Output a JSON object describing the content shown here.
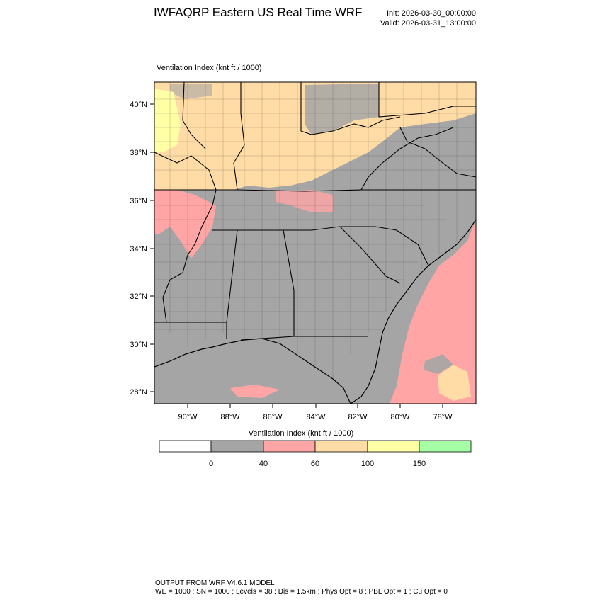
{
  "header": {
    "title": "IWFAQRP Eastern US Real Time WRF",
    "init": "Init: 2026-03-30_00:00:00",
    "valid": "Valid: 2026-03-31_13:00:00"
  },
  "map": {
    "field_label": "Ventilation Index   (knt ft / 1000)",
    "lat_labels": [
      "40°N",
      "38°N",
      "36°N",
      "34°N",
      "32°N",
      "30°N",
      "28°N"
    ],
    "lon_labels": [
      "90°W",
      "88°W",
      "86°W",
      "84°W",
      "82°W",
      "80°W",
      "78°W"
    ]
  },
  "colorbar": {
    "title": "Ventilation Index  (knt ft / 1000)",
    "bins": [
      {
        "color": "#ffffff"
      },
      {
        "color": "#a5a5a5"
      },
      {
        "color": "#ffa5a5"
      },
      {
        "color": "#ffdca5"
      },
      {
        "color": "#ffffa5"
      },
      {
        "color": "#a5ffa5"
      }
    ],
    "labels": [
      "0",
      "40",
      "60",
      "100",
      "150"
    ]
  },
  "footer": {
    "line1": "OUTPUT FROM WRF V4.6.1 MODEL",
    "line2": "WE = 1000 ; SN = 1000 ; Levels = 38 ; Dis = 1.5km ; Phys Opt = 8 ; PBL Opt = 1 ; Cu Opt = 0"
  }
}
